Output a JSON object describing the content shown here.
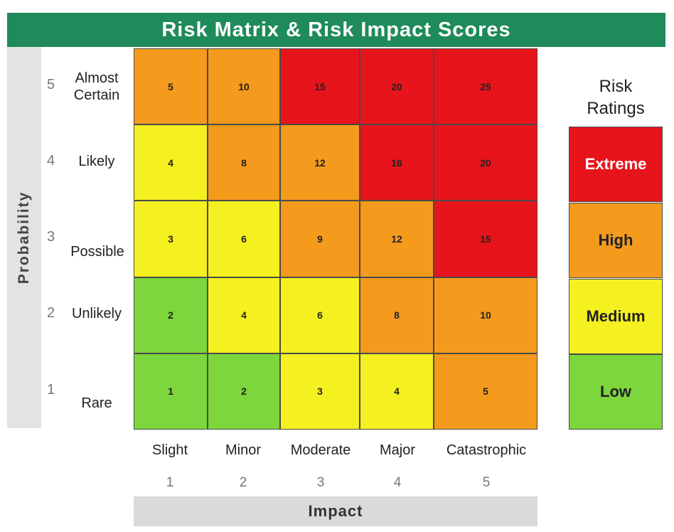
{
  "title": "Risk Matrix & Risk Impact Scores",
  "probability_label": "Probability",
  "impact_label": "Impact",
  "rows": [
    {
      "num": "5",
      "label": "Almost\nCertain"
    },
    {
      "num": "4",
      "label": "Likely"
    },
    {
      "num": "3",
      "label": "Possible"
    },
    {
      "num": "2",
      "label": "Unlikely"
    },
    {
      "num": "1",
      "label": "Rare"
    }
  ],
  "columns": [
    {
      "num": "1",
      "label": "Slight"
    },
    {
      "num": "2",
      "label": "Minor"
    },
    {
      "num": "3",
      "label": "Moderate"
    },
    {
      "num": "4",
      "label": "Major"
    },
    {
      "num": "5",
      "label": "Catastrophic"
    }
  ],
  "matrix": [
    [
      {
        "v": "5",
        "r": "high"
      },
      {
        "v": "10",
        "r": "high"
      },
      {
        "v": "15",
        "r": "extreme"
      },
      {
        "v": "20",
        "r": "extreme"
      },
      {
        "v": "25",
        "r": "extreme"
      }
    ],
    [
      {
        "v": "4",
        "r": "medium"
      },
      {
        "v": "8",
        "r": "high"
      },
      {
        "v": "12",
        "r": "high"
      },
      {
        "v": "16",
        "r": "extreme"
      },
      {
        "v": "20",
        "r": "extreme"
      }
    ],
    [
      {
        "v": "3",
        "r": "medium"
      },
      {
        "v": "6",
        "r": "medium"
      },
      {
        "v": "9",
        "r": "high"
      },
      {
        "v": "12",
        "r": "high"
      },
      {
        "v": "15",
        "r": "extreme"
      }
    ],
    [
      {
        "v": "2",
        "r": "low"
      },
      {
        "v": "4",
        "r": "medium"
      },
      {
        "v": "6",
        "r": "medium"
      },
      {
        "v": "8",
        "r": "high"
      },
      {
        "v": "10",
        "r": "high"
      }
    ],
    [
      {
        "v": "1",
        "r": "low"
      },
      {
        "v": "2",
        "r": "low"
      },
      {
        "v": "3",
        "r": "medium"
      },
      {
        "v": "4",
        "r": "medium"
      },
      {
        "v": "5",
        "r": "high"
      }
    ]
  ],
  "ratings_title": "Risk\nRatings",
  "ratings": [
    {
      "key": "extreme",
      "label": "Extreme",
      "color": "#e8141b",
      "text_color": "#ffffff"
    },
    {
      "key": "high",
      "label": "High",
      "color": "#f49a1d",
      "text_color": "#222222"
    },
    {
      "key": "medium",
      "label": "Medium",
      "color": "#f5f01f",
      "text_color": "#222222"
    },
    {
      "key": "low",
      "label": "Low",
      "color": "#7cd63c",
      "text_color": "#222222"
    }
  ],
  "colors": {
    "title_bg": "#1f8a5a",
    "panel_bg": "#e3e3e3"
  }
}
